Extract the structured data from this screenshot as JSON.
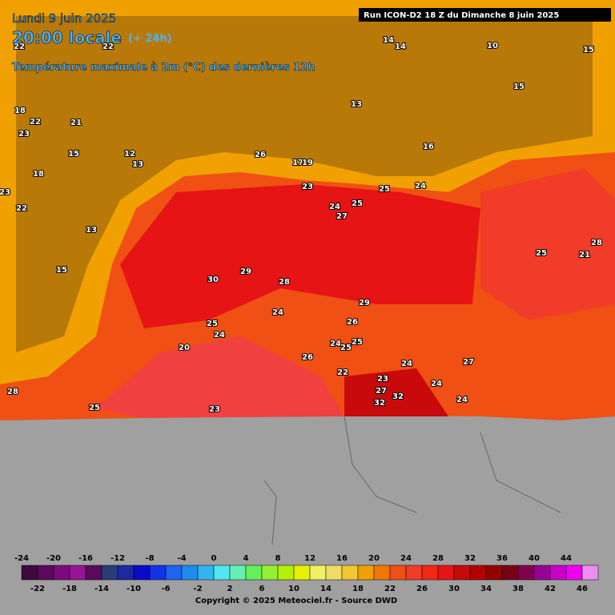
{
  "header": {
    "date": "Lundi 9 juin 2025",
    "time": "20:00 locale",
    "lead": "(+ 24h)",
    "variable": "Température maximale à 2m (°C) des dernières 12h",
    "run": "Run ICON-D2 18 Z du Dimanche 8 juin 2025"
  },
  "map_labels": [
    "22",
    "22",
    "18",
    "22",
    "23",
    "21",
    "15",
    "18",
    "23",
    "22",
    "13",
    "15",
    "12",
    "13",
    "26",
    "17",
    "19",
    "23",
    "24",
    "27",
    "25",
    "25",
    "24",
    "28",
    "25",
    "30",
    "29",
    "28",
    "29",
    "24",
    "25",
    "24",
    "26",
    "20",
    "25",
    "24",
    "25",
    "26",
    "27",
    "22",
    "23",
    "32",
    "32",
    "24",
    "27",
    "24",
    "28",
    "25",
    "23",
    "24",
    "21",
    "14",
    "14",
    "10",
    "15",
    "15",
    "13",
    "16"
  ],
  "legend": {
    "top_ticks": [
      -24,
      -20,
      -16,
      -12,
      -8,
      -4,
      0,
      4,
      8,
      12,
      16,
      20,
      24,
      28,
      32,
      36,
      40,
      44
    ],
    "bottom_ticks": [
      -22,
      -18,
      -14,
      -10,
      -6,
      -2,
      2,
      6,
      10,
      14,
      18,
      22,
      26,
      30,
      34,
      38,
      42,
      46
    ],
    "colors": [
      "#3c0a3c",
      "#5a0a5a",
      "#7a0a7a",
      "#961496",
      "#5a0a5a",
      "#283c78",
      "#1e28a0",
      "#0a0ac8",
      "#1432e6",
      "#1e64f0",
      "#1e8cf0",
      "#32b4f0",
      "#50e6f0",
      "#64f0b4",
      "#64f05a",
      "#96f032",
      "#b4f000",
      "#e6f000",
      "#f0f064",
      "#f0dc64",
      "#f0c832",
      "#f0a000",
      "#f07800",
      "#f05014",
      "#f03c28",
      "#f02814",
      "#e61414",
      "#c80a0a",
      "#b40000",
      "#960000",
      "#780014",
      "#820050",
      "#960096",
      "#c800c8",
      "#f000f0",
      "#f08cf0"
    ]
  },
  "copyright": "Copyright © 2025 Meteociel.fr - Source DWD"
}
